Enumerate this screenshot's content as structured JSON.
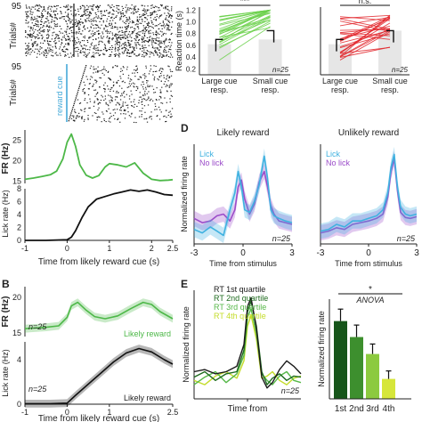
{
  "chart_data": [
    {
      "id": "A",
      "type": "raster",
      "panel_label": "",
      "ylabel": "Trials#",
      "trial_tick_top": "95",
      "trial_tick_bottom": "95",
      "annotation": "reward cue",
      "note": "spike raster aligned to reward cue (top) and lick raster (bottom)"
    },
    {
      "id": "A-fr",
      "type": "line",
      "ylabel": "FR (Hz)",
      "yticks": [
        "25",
        "20",
        "15"
      ],
      "xlim": [
        -1,
        2.5
      ],
      "series": [
        {
          "color": "#4db848",
          "x": [
            -1.0,
            -0.8,
            -0.6,
            -0.4,
            -0.25,
            -0.1,
            0.0,
            0.1,
            0.2,
            0.3,
            0.45,
            0.6,
            0.75,
            0.9,
            1.0,
            1.2,
            1.4,
            1.6,
            1.8,
            2.0,
            2.2,
            2.4,
            2.5
          ],
          "y": [
            15.5,
            15.8,
            16.2,
            16.6,
            17.5,
            20.5,
            24.5,
            26.5,
            23.5,
            19.0,
            16.5,
            15.8,
            16.4,
            18.5,
            19.3,
            19.0,
            18.5,
            19.5,
            17.0,
            15.5,
            15.2,
            15.3,
            15.4
          ]
        }
      ]
    },
    {
      "id": "A-lick",
      "type": "line",
      "ylabel": "Lick rate (Hz)",
      "yticks": [
        "8",
        "6",
        "4",
        "2",
        "0"
      ],
      "xticks": [
        "-1",
        "0",
        "1",
        "2",
        "2.5"
      ],
      "xlabel": "Time from likely reward cue (s)",
      "xlim": [
        -1,
        2.5
      ],
      "ylim": [
        0,
        8
      ],
      "series": [
        {
          "color": "#111111",
          "x": [
            -1.0,
            -0.5,
            0.0,
            0.1,
            0.2,
            0.35,
            0.5,
            0.7,
            0.9,
            1.1,
            1.3,
            1.5,
            1.7,
            1.9,
            2.1,
            2.3,
            2.5
          ],
          "y": [
            0,
            0,
            0.1,
            0.5,
            1.5,
            3.5,
            5.2,
            6.4,
            6.8,
            7.2,
            7.5,
            7.8,
            7.6,
            7.8,
            7.5,
            7.1,
            7.0
          ]
        }
      ]
    },
    {
      "id": "B-fr",
      "panel_label": "B",
      "type": "line",
      "ylabel": "FR (Hz)",
      "yticks": [
        "20",
        "15"
      ],
      "n_label": "n=25",
      "legend": "Likely reward",
      "series": [
        {
          "color": "#4db848",
          "x": [
            -1.0,
            -0.5,
            -0.2,
            0.0,
            0.1,
            0.25,
            0.45,
            0.65,
            0.9,
            1.2,
            1.5,
            1.8,
            2.0,
            2.2,
            2.5
          ],
          "y": [
            15.6,
            15.8,
            16.0,
            17.2,
            18.8,
            19.3,
            18.2,
            17.3,
            17.0,
            17.4,
            18.4,
            19.3,
            19.0,
            18.0,
            17.0
          ]
        }
      ]
    },
    {
      "id": "B-lick",
      "type": "line",
      "ylabel": "Lick rate (Hz)",
      "yticks": [
        "4",
        "0"
      ],
      "xticks": [
        "-1",
        "0",
        "1",
        "2.5"
      ],
      "xlabel": "Time from likely reward cue (s)",
      "n_label": "n=25",
      "legend": "Likely reward",
      "series": [
        {
          "color": "#111111",
          "x": [
            -1.0,
            -0.4,
            0.0,
            0.2,
            0.5,
            0.8,
            1.1,
            1.4,
            1.7,
            2.0,
            2.3,
            2.5
          ],
          "y": [
            0.05,
            0.05,
            0.1,
            0.8,
            1.8,
            2.8,
            3.8,
            4.6,
            5.0,
            4.7,
            4.0,
            3.6
          ]
        }
      ]
    },
    {
      "id": "C-left",
      "type": "paired-scatter",
      "ylabel": "Reaction time (s)",
      "yticks": [
        "1.2",
        "1.0",
        "0.8",
        "0.6",
        "0.4",
        "0.2"
      ],
      "categories": [
        "Large cue resp.",
        "Small cue resp."
      ],
      "significance": "***",
      "n_label": "n=25",
      "color": "#6ad04a",
      "ylim": [
        0.1,
        1.25
      ]
    },
    {
      "id": "C-right",
      "type": "paired-scatter",
      "categories": [
        "Large cue resp.",
        "Small cue resp."
      ],
      "significance": "n.s.",
      "n_label": "n=25",
      "color": "#e2262b"
    },
    {
      "id": "D-left",
      "panel_label": "D",
      "type": "line",
      "title": "Likely reward",
      "ylabel": "Normalized firing rate",
      "xticks": [
        "-3",
        "0",
        "3"
      ],
      "xlabel": "Time from stimulus",
      "n_label": "n=25",
      "legend": [
        "Lick",
        "No lick"
      ],
      "series": [
        {
          "name": "Lick",
          "color": "#3fb1e0",
          "x": [
            -3,
            -2.5,
            -2,
            -1.6,
            -1.2,
            -0.8,
            -0.5,
            -0.3,
            -0.1,
            0.1,
            0.4,
            0.7,
            1.0,
            1.3,
            1.5,
            1.7,
            1.9,
            2.2,
            2.6,
            3
          ],
          "y": [
            0.12,
            0.08,
            0.15,
            0.1,
            0.05,
            0.35,
            0.55,
            0.8,
            0.62,
            0.35,
            0.32,
            0.45,
            0.65,
            0.98,
            0.72,
            0.35,
            0.28,
            0.25,
            0.22,
            0.2
          ]
        },
        {
          "name": "No lick",
          "color": "#9b4cc9",
          "x": [
            -3,
            -2.5,
            -2,
            -1.6,
            -1.2,
            -0.8,
            -0.5,
            -0.3,
            -0.1,
            0.1,
            0.4,
            0.7,
            1.0,
            1.3,
            1.5,
            1.7,
            1.9,
            2.2,
            2.6,
            3
          ],
          "y": [
            0.25,
            0.2,
            0.22,
            0.28,
            0.3,
            0.22,
            0.35,
            0.62,
            0.7,
            0.48,
            0.3,
            0.42,
            0.68,
            0.8,
            0.62,
            0.4,
            0.3,
            0.22,
            0.2,
            0.18
          ]
        }
      ]
    },
    {
      "id": "D-right",
      "type": "line",
      "title": "Unlikely reward",
      "xticks": [
        "-3",
        "0",
        "3"
      ],
      "xlabel": "Time from stimulus",
      "n_label": "n=25",
      "legend": [
        "Lick",
        "No lick"
      ],
      "series": [
        {
          "name": "Lick",
          "color": "#3fb1e0",
          "x": [
            -3,
            -2.5,
            -2,
            -1.5,
            -1,
            -0.5,
            0,
            0.5,
            0.9,
            1.2,
            1.4,
            1.6,
            1.8,
            2.0,
            2.3,
            2.6,
            3
          ],
          "y": [
            0.1,
            0.12,
            0.18,
            0.15,
            0.22,
            0.22,
            0.25,
            0.28,
            0.35,
            0.55,
            0.85,
            1.0,
            0.62,
            0.38,
            0.3,
            0.28,
            0.3
          ]
        },
        {
          "name": "No lick",
          "color": "#9b4cc9",
          "x": [
            -3,
            -2.5,
            -2,
            -1.5,
            -1,
            -0.5,
            0,
            0.5,
            0.9,
            1.2,
            1.4,
            1.6,
            1.8,
            2.0,
            2.3,
            2.6,
            3
          ],
          "y": [
            0.08,
            0.1,
            0.14,
            0.12,
            0.18,
            0.2,
            0.22,
            0.25,
            0.3,
            0.5,
            0.8,
            0.95,
            0.58,
            0.32,
            0.26,
            0.25,
            0.27
          ]
        }
      ]
    },
    {
      "id": "E-line",
      "panel_label": "E",
      "type": "line",
      "ylabel": "Normalized firing rate",
      "xlabel": "Time from",
      "n_label": "n=25",
      "legend": [
        "RT 1st quartile",
        "RT 2nd quartile",
        "RT 3rd quartile",
        "RT 4th quartile"
      ],
      "series": [
        {
          "name": "RT 1st quartile",
          "color": "#1a1a1a",
          "x": [
            -1.5,
            -1.2,
            -0.9,
            -0.6,
            -0.3,
            -0.1,
            0.0,
            0.1,
            0.25,
            0.4,
            0.55,
            0.7,
            0.9,
            1.1,
            1.3,
            1.5
          ],
          "y": [
            0.3,
            0.32,
            0.28,
            0.3,
            0.35,
            0.55,
            0.9,
            0.98,
            0.7,
            0.25,
            0.15,
            0.2,
            0.32,
            0.4,
            0.35,
            0.28
          ]
        },
        {
          "name": "RT 2nd quartile",
          "color": "#1e6b1e",
          "x": [
            -1.5,
            -1.2,
            -0.9,
            -0.6,
            -0.3,
            -0.1,
            0.0,
            0.1,
            0.25,
            0.4,
            0.55,
            0.7,
            0.9,
            1.1,
            1.3,
            1.5
          ],
          "y": [
            0.25,
            0.3,
            0.22,
            0.28,
            0.3,
            0.5,
            0.85,
            0.95,
            0.72,
            0.3,
            0.18,
            0.24,
            0.28,
            0.22,
            0.26,
            0.25
          ]
        },
        {
          "name": "RT 3rd quartile",
          "color": "#56b848",
          "x": [
            -1.5,
            -1.2,
            -0.9,
            -0.6,
            -0.3,
            -0.1,
            0.0,
            0.1,
            0.25,
            0.4,
            0.55,
            0.7,
            0.9,
            1.1,
            1.3,
            1.5
          ],
          "y": [
            0.18,
            0.25,
            0.3,
            0.2,
            0.28,
            0.45,
            0.8,
            0.88,
            0.65,
            0.28,
            0.22,
            0.18,
            0.26,
            0.3,
            0.22,
            0.2
          ]
        },
        {
          "name": "RT 4th quartile",
          "color": "#c4dc2a",
          "x": [
            -1.5,
            -1.2,
            -0.9,
            -0.6,
            -0.3,
            -0.1,
            0.0,
            0.1,
            0.25,
            0.4,
            0.55,
            0.7,
            0.9,
            1.1,
            1.3,
            1.5
          ],
          "y": [
            0.22,
            0.18,
            0.26,
            0.3,
            0.24,
            0.4,
            0.72,
            0.82,
            0.6,
            0.24,
            0.26,
            0.3,
            0.22,
            0.18,
            0.24,
            0.26
          ]
        }
      ]
    },
    {
      "id": "E-bar",
      "type": "bar",
      "ylabel": "Normalized firing rate",
      "significance": "*",
      "test_label": "ANOVA",
      "categories": [
        "1st",
        "2nd",
        "3rd",
        "4th"
      ],
      "values": [
        0.78,
        0.62,
        0.45,
        0.2
      ],
      "errors": [
        0.12,
        0.12,
        0.1,
        0.08
      ],
      "colors": [
        "#16551a",
        "#3d8f2e",
        "#8cca3f",
        "#d6e63a"
      ],
      "ylim": [
        0,
        1.0
      ]
    }
  ]
}
